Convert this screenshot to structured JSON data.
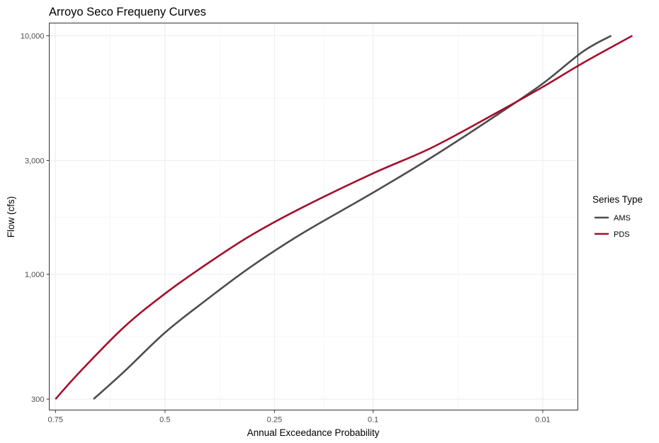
{
  "chart_data": {
    "type": "line",
    "title": "Arroyo Seco Frequeny Curves",
    "xlabel": "Annual Exceedance Probability",
    "ylabel": "Flow (cfs)",
    "x_scale": "normal-probability (reversed)",
    "y_scale": "log10",
    "xlim": [
      0.762,
      0.0055
    ],
    "ylim": [
      270,
      11300
    ],
    "x_ticks": [
      {
        "value": 0.75,
        "label": "0.75"
      },
      {
        "value": 0.5,
        "label": "0.5"
      },
      {
        "value": 0.25,
        "label": "0.25"
      },
      {
        "value": 0.1,
        "label": "0.1"
      },
      {
        "value": 0.01,
        "label": "0.01"
      }
    ],
    "y_ticks": [
      {
        "value": 300,
        "label": "300"
      },
      {
        "value": 1000,
        "label": "1,000"
      },
      {
        "value": 3000,
        "label": "3,000"
      },
      {
        "value": 10000,
        "label": "10,000"
      }
    ],
    "grid": true,
    "legend": {
      "title": "Series Type",
      "position": "right"
    },
    "series": [
      {
        "name": "AMS",
        "color": "#4d4d4d",
        "x": [
          0.67,
          0.6,
          0.5,
          0.4,
          0.3,
          0.2,
          0.1,
          0.05,
          0.02,
          0.01,
          0.005,
          0.003
        ],
        "y": [
          300,
          390,
          570,
          780,
          1070,
          1480,
          2200,
          3100,
          4700,
          6300,
          8600,
          10000
        ]
      },
      {
        "name": "PDS",
        "color": "#a50f2d",
        "x": [
          0.75,
          0.7,
          0.6,
          0.5,
          0.4,
          0.3,
          0.2,
          0.1,
          0.05,
          0.02,
          0.01,
          0.005,
          0.002
        ],
        "y": [
          300,
          390,
          600,
          830,
          1100,
          1450,
          1900,
          2650,
          3400,
          4800,
          6100,
          7700,
          10000
        ]
      }
    ]
  }
}
